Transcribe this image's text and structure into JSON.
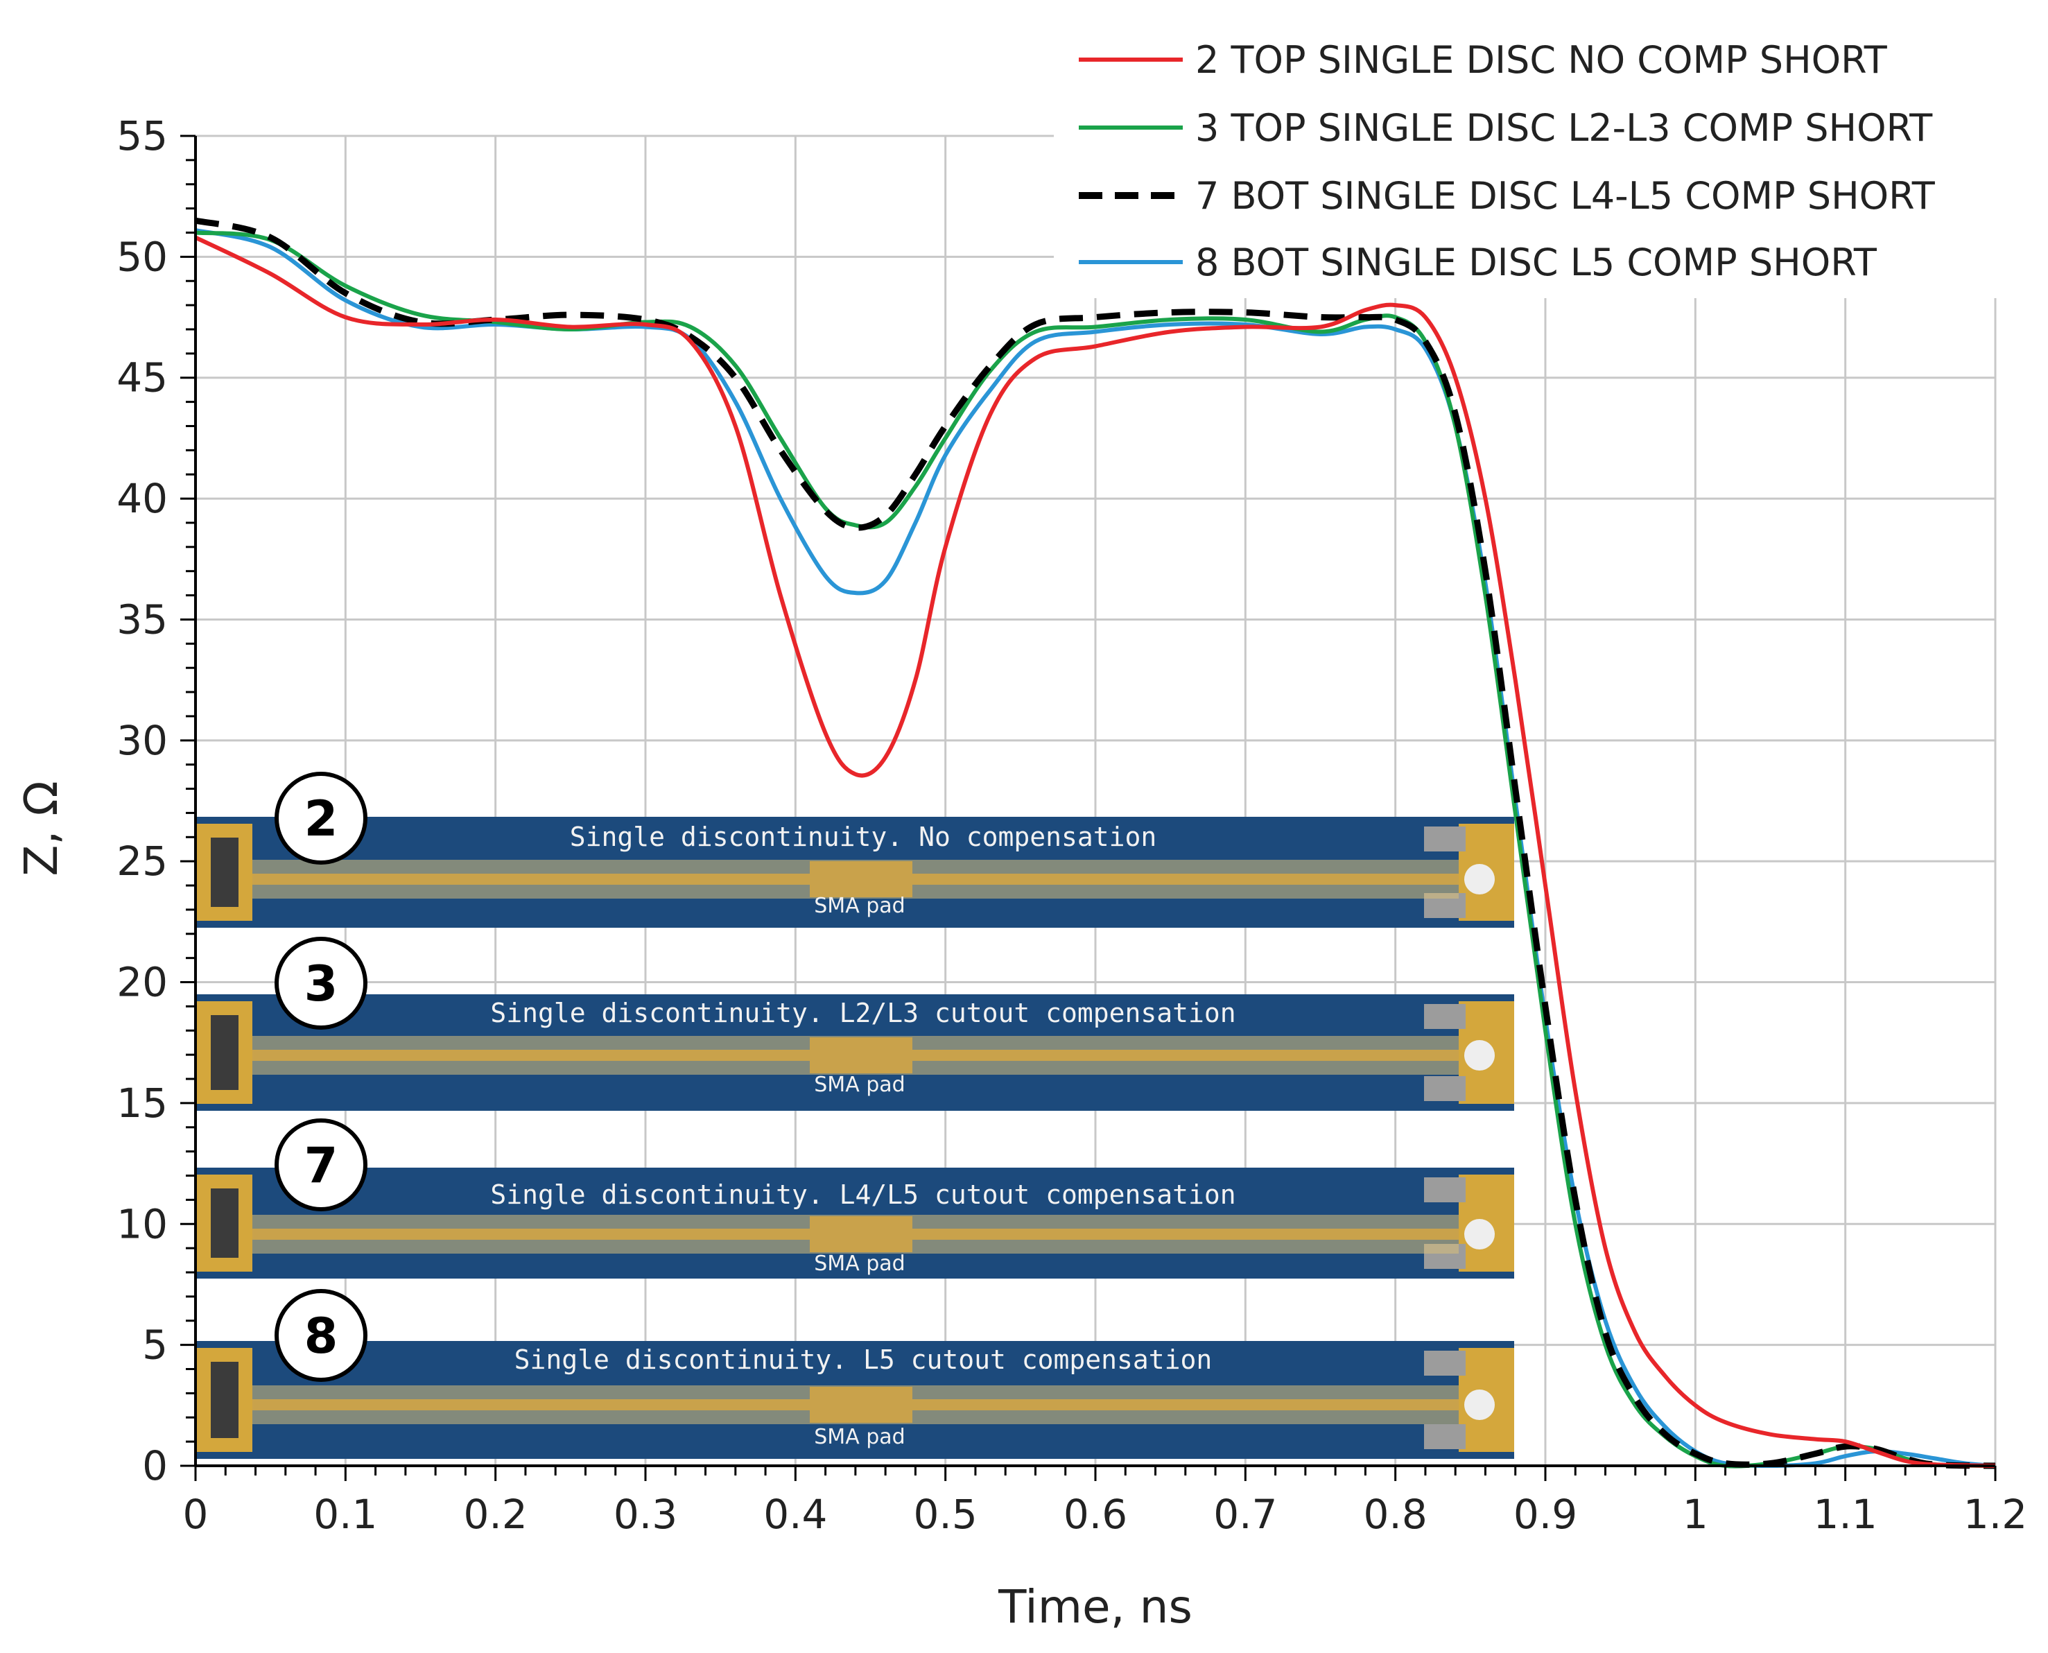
{
  "chart_data": {
    "type": "line",
    "title": "",
    "xlabel": "Time, ns",
    "ylabel": "Z, Ω",
    "xlim": [
      0,
      1.2
    ],
    "ylim": [
      0,
      55
    ],
    "x_ticks": [
      "0",
      "0.1",
      "0.2",
      "0.3",
      "0.4",
      "0.5",
      "0.6",
      "0.7",
      "0.8",
      "0.9",
      "1",
      "1.1",
      "1.2"
    ],
    "y_ticks": [
      "0",
      "5",
      "10",
      "15",
      "20",
      "25",
      "30",
      "35",
      "40",
      "45",
      "50",
      "55"
    ],
    "grid": true,
    "legend_position": "top-right",
    "series": [
      {
        "name": "2 TOP SINGLE DISC NO COMP SHORT",
        "color": "#e8262a",
        "dash": "solid",
        "points": [
          [
            0,
            50.8
          ],
          [
            0.05,
            49.3
          ],
          [
            0.1,
            47.5
          ],
          [
            0.15,
            47.2
          ],
          [
            0.2,
            47.4
          ],
          [
            0.25,
            47.1
          ],
          [
            0.3,
            47.2
          ],
          [
            0.33,
            46.5
          ],
          [
            0.36,
            43
          ],
          [
            0.39,
            36
          ],
          [
            0.42,
            30.3
          ],
          [
            0.44,
            28.6
          ],
          [
            0.46,
            29.3
          ],
          [
            0.48,
            32.5
          ],
          [
            0.5,
            38
          ],
          [
            0.53,
            43.5
          ],
          [
            0.56,
            45.8
          ],
          [
            0.6,
            46.3
          ],
          [
            0.65,
            46.9
          ],
          [
            0.7,
            47.1
          ],
          [
            0.75,
            47.1
          ],
          [
            0.78,
            47.8
          ],
          [
            0.8,
            48
          ],
          [
            0.82,
            47.5
          ],
          [
            0.84,
            45
          ],
          [
            0.86,
            40
          ],
          [
            0.88,
            32.5
          ],
          [
            0.9,
            24
          ],
          [
            0.92,
            15.5
          ],
          [
            0.94,
            9
          ],
          [
            0.96,
            5.5
          ],
          [
            0.98,
            3.7
          ],
          [
            1.0,
            2.5
          ],
          [
            1.02,
            1.8
          ],
          [
            1.05,
            1.3
          ],
          [
            1.08,
            1.1
          ],
          [
            1.1,
            1.0
          ],
          [
            1.12,
            0.6
          ],
          [
            1.14,
            0.2
          ],
          [
            1.16,
            0.05
          ],
          [
            1.2,
            0
          ]
        ]
      },
      {
        "name": "3 TOP SINGLE DISC L2-L3 COMP SHORT",
        "color": "#1aa34a",
        "dash": "solid",
        "points": [
          [
            0,
            51
          ],
          [
            0.05,
            50.7
          ],
          [
            0.1,
            48.8
          ],
          [
            0.15,
            47.6
          ],
          [
            0.2,
            47.3
          ],
          [
            0.25,
            47
          ],
          [
            0.3,
            47.3
          ],
          [
            0.33,
            47.1
          ],
          [
            0.36,
            45.5
          ],
          [
            0.39,
            42.5
          ],
          [
            0.42,
            39.6
          ],
          [
            0.44,
            38.9
          ],
          [
            0.46,
            39
          ],
          [
            0.48,
            40.5
          ],
          [
            0.5,
            42.5
          ],
          [
            0.53,
            45.3
          ],
          [
            0.56,
            46.9
          ],
          [
            0.6,
            47.1
          ],
          [
            0.65,
            47.4
          ],
          [
            0.7,
            47.4
          ],
          [
            0.75,
            46.9
          ],
          [
            0.78,
            47.4
          ],
          [
            0.8,
            47.5
          ],
          [
            0.82,
            46.5
          ],
          [
            0.84,
            43
          ],
          [
            0.86,
            36
          ],
          [
            0.88,
            27
          ],
          [
            0.9,
            18
          ],
          [
            0.92,
            10
          ],
          [
            0.94,
            5
          ],
          [
            0.96,
            2.5
          ],
          [
            0.98,
            1.2
          ],
          [
            1.0,
            0.4
          ],
          [
            1.02,
            0
          ],
          [
            1.05,
            0.1
          ],
          [
            1.08,
            0.5
          ],
          [
            1.1,
            0.8
          ],
          [
            1.12,
            0.7
          ],
          [
            1.14,
            0.3
          ],
          [
            1.16,
            0.05
          ],
          [
            1.2,
            0
          ]
        ]
      },
      {
        "name": "7 BOT SINGLE DISC L4-L5 COMP SHORT",
        "color": "#000000",
        "dash": "dashed",
        "points": [
          [
            0,
            51.5
          ],
          [
            0.05,
            50.8
          ],
          [
            0.1,
            48.5
          ],
          [
            0.15,
            47.3
          ],
          [
            0.2,
            47.4
          ],
          [
            0.25,
            47.6
          ],
          [
            0.3,
            47.4
          ],
          [
            0.33,
            46.7
          ],
          [
            0.36,
            45
          ],
          [
            0.39,
            42
          ],
          [
            0.42,
            39.5
          ],
          [
            0.44,
            38.8
          ],
          [
            0.46,
            39.3
          ],
          [
            0.48,
            41
          ],
          [
            0.5,
            43
          ],
          [
            0.53,
            45.5
          ],
          [
            0.56,
            47.2
          ],
          [
            0.6,
            47.5
          ],
          [
            0.65,
            47.7
          ],
          [
            0.7,
            47.7
          ],
          [
            0.75,
            47.5
          ],
          [
            0.78,
            47.5
          ],
          [
            0.8,
            47.4
          ],
          [
            0.82,
            46.5
          ],
          [
            0.84,
            43.5
          ],
          [
            0.86,
            37
          ],
          [
            0.88,
            28
          ],
          [
            0.9,
            19
          ],
          [
            0.92,
            11
          ],
          [
            0.94,
            5.5
          ],
          [
            0.96,
            2.8
          ],
          [
            0.98,
            1.3
          ],
          [
            1.0,
            0.5
          ],
          [
            1.02,
            0.1
          ],
          [
            1.05,
            0.1
          ],
          [
            1.08,
            0.5
          ],
          [
            1.1,
            0.8
          ],
          [
            1.12,
            0.7
          ],
          [
            1.14,
            0.3
          ],
          [
            1.16,
            0.05
          ],
          [
            1.2,
            0
          ]
        ]
      },
      {
        "name": "8 BOT SINGLE DISC L5 COMP SHORT",
        "color": "#2a95d6",
        "dash": "solid",
        "points": [
          [
            0,
            51.1
          ],
          [
            0.05,
            50.4
          ],
          [
            0.1,
            48.2
          ],
          [
            0.15,
            47.1
          ],
          [
            0.2,
            47.2
          ],
          [
            0.25,
            47
          ],
          [
            0.3,
            47.1
          ],
          [
            0.33,
            46.6
          ],
          [
            0.36,
            44
          ],
          [
            0.39,
            40
          ],
          [
            0.42,
            36.8
          ],
          [
            0.44,
            36.1
          ],
          [
            0.46,
            36.6
          ],
          [
            0.48,
            39
          ],
          [
            0.5,
            41.8
          ],
          [
            0.53,
            44.5
          ],
          [
            0.56,
            46.5
          ],
          [
            0.6,
            46.9
          ],
          [
            0.65,
            47.2
          ],
          [
            0.7,
            47.2
          ],
          [
            0.75,
            46.8
          ],
          [
            0.78,
            47.1
          ],
          [
            0.8,
            47.0
          ],
          [
            0.82,
            46.2
          ],
          [
            0.84,
            43
          ],
          [
            0.86,
            36.5
          ],
          [
            0.88,
            27.5
          ],
          [
            0.9,
            18.5
          ],
          [
            0.92,
            11
          ],
          [
            0.94,
            6
          ],
          [
            0.96,
            3.2
          ],
          [
            0.98,
            1.6
          ],
          [
            1.0,
            0.6
          ],
          [
            1.02,
            0.1
          ],
          [
            1.05,
            0
          ],
          [
            1.08,
            0.1
          ],
          [
            1.1,
            0.4
          ],
          [
            1.12,
            0.6
          ],
          [
            1.14,
            0.5
          ],
          [
            1.16,
            0.3
          ],
          [
            1.18,
            0.1
          ],
          [
            1.2,
            0
          ]
        ]
      }
    ]
  },
  "boards": [
    {
      "badge": "2",
      "caption": "Single discontinuity. No compensation",
      "pad_label": "SMA pad"
    },
    {
      "badge": "3",
      "caption": "Single discontinuity. L2/L3 cutout compensation",
      "pad_label": "SMA pad"
    },
    {
      "badge": "7",
      "caption": "Single discontinuity. L4/L5 cutout compensation",
      "pad_label": "SMA pad"
    },
    {
      "badge": "8",
      "caption": "Single discontinuity. L5 cutout compensation",
      "pad_label": "SMA pad"
    }
  ],
  "colors": {
    "board_blue": "#1c4a7c",
    "trace_gold": "#c9a24b",
    "connector_gold": "#d4a73c"
  }
}
